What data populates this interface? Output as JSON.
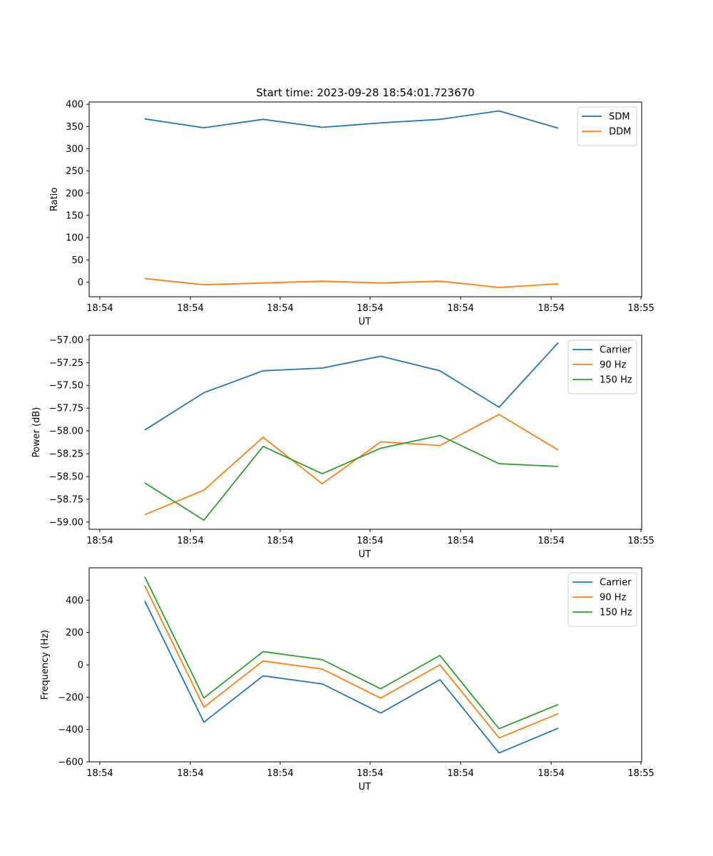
{
  "chart_data": [
    {
      "type": "line",
      "title": "Start time: 2023-09-28 18:54:01.723670",
      "xlabel": "UT",
      "ylabel": "Ratio",
      "x_tick_labels": [
        "18:54",
        "18:54",
        "18:54",
        "18:54",
        "18:54",
        "18:54",
        "18:55"
      ],
      "ylim": [
        -33,
        405
      ],
      "y_ticks": [
        0,
        50,
        100,
        150,
        200,
        250,
        300,
        350,
        400
      ],
      "y_tick_labels": [
        "0",
        "50",
        "100",
        "150",
        "200",
        "250",
        "300",
        "350",
        "400"
      ],
      "legend_position": "top-right",
      "series": [
        {
          "name": "SDM",
          "color": "#1f77b4",
          "values": [
            367,
            347,
            366,
            348,
            358,
            366,
            385,
            346
          ]
        },
        {
          "name": "DDM",
          "color": "#ff7f0e",
          "values": [
            8,
            -6,
            -2,
            2,
            -2,
            2,
            -12,
            -4
          ]
        }
      ]
    },
    {
      "type": "line",
      "title": "",
      "xlabel": "UT",
      "ylabel": "Power (dB)",
      "x_tick_labels": [
        "18:54",
        "18:54",
        "18:54",
        "18:54",
        "18:54",
        "18:54",
        "18:55"
      ],
      "ylim": [
        -59.08,
        -56.95
      ],
      "y_ticks": [
        -59.0,
        -58.75,
        -58.5,
        -58.25,
        -58.0,
        -57.75,
        -57.5,
        -57.25,
        -57.0
      ],
      "y_tick_labels": [
        "−59.00",
        "−58.75",
        "−58.50",
        "−58.25",
        "−58.00",
        "−57.75",
        "−57.50",
        "−57.25",
        "−57.00"
      ],
      "legend_position": "top-right",
      "series": [
        {
          "name": "Carrier",
          "color": "#1f77b4",
          "values": [
            -57.99,
            -57.58,
            -57.34,
            -57.31,
            -57.18,
            -57.34,
            -57.74,
            -57.03
          ]
        },
        {
          "name": "90 Hz",
          "color": "#ff7f0e",
          "values": [
            -58.92,
            -58.65,
            -58.07,
            -58.58,
            -58.12,
            -58.16,
            -57.82,
            -58.21
          ]
        },
        {
          "name": "150 Hz",
          "color": "#2ca02c",
          "values": [
            -58.57,
            -58.98,
            -58.17,
            -58.47,
            -58.19,
            -58.05,
            -58.36,
            -58.39
          ]
        }
      ]
    },
    {
      "type": "line",
      "title": "",
      "xlabel": "UT",
      "ylabel": "Frequency (Hz)",
      "x_tick_labels": [
        "18:54",
        "18:54",
        "18:54",
        "18:54",
        "18:54",
        "18:54",
        "18:55"
      ],
      "ylim": [
        -600,
        600
      ],
      "y_ticks": [
        -600,
        -400,
        -200,
        0,
        200,
        400
      ],
      "y_tick_labels": [
        "−600",
        "−400",
        "−200",
        "0",
        "200",
        "400"
      ],
      "legend_position": "top-right",
      "series": [
        {
          "name": "Carrier",
          "color": "#1f77b4",
          "values": [
            395,
            -355,
            -68,
            -118,
            -298,
            -92,
            -545,
            -392
          ]
        },
        {
          "name": "90 Hz",
          "color": "#ff7f0e",
          "values": [
            490,
            -262,
            24,
            -26,
            -206,
            0,
            -452,
            -302
          ]
        },
        {
          "name": "150 Hz",
          "color": "#2ca02c",
          "values": [
            545,
            -205,
            82,
            32,
            -148,
            58,
            -395,
            -245
          ]
        }
      ]
    }
  ]
}
